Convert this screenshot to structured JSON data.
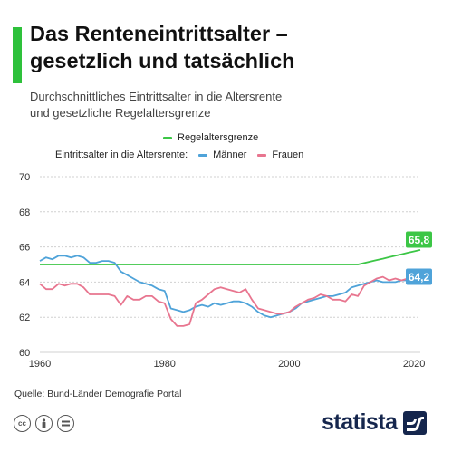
{
  "header": {
    "title_line1": "Das Renteneintrittsalter –",
    "title_line2": "gesetzlich und tatsächlich",
    "subtitle_line1": "Durchschnittliches Eintrittsalter in die Altersrente",
    "subtitle_line2": "und gesetzliche Regelaltersgrenze"
  },
  "legend": {
    "regel": "Regelaltersgrenze",
    "prefix": "Eintrittsalter in die Altersrente:",
    "maenner": "Männer",
    "frauen": "Frauen"
  },
  "footer": {
    "source": "Quelle: Bund-Länder Demografie Portal",
    "brand": "statista",
    "cc_icons": [
      "cc-icon",
      "by-icon",
      "nd-icon"
    ]
  },
  "colors": {
    "accent": "#2ec13b",
    "regel": "#3cc646",
    "maenner": "#4fa3d9",
    "frauen": "#e8758f",
    "grid": "#d0d0d0",
    "brand": "#15264d"
  },
  "chart_data": {
    "type": "line",
    "x_ticks": [
      1960,
      1980,
      2000,
      2020
    ],
    "y_ticks": [
      60,
      62,
      64,
      66,
      68,
      70
    ],
    "xlim": [
      1960,
      2021
    ],
    "ylim": [
      60,
      70
    ],
    "grid": "horizontal",
    "end_labels": {
      "regel": "65,8",
      "maenner": "64,2"
    },
    "series": [
      {
        "key": "regel",
        "name": "Regelaltersgrenze",
        "x": [
          1960,
          2011,
          2012,
          2013,
          2014,
          2015,
          2016,
          2017,
          2018,
          2019,
          2020,
          2021
        ],
        "y": [
          65.0,
          65.0,
          65.08,
          65.17,
          65.25,
          65.33,
          65.42,
          65.5,
          65.58,
          65.67,
          65.75,
          65.83
        ]
      },
      {
        "key": "maenner",
        "name": "Männer",
        "x": [
          1960,
          1961,
          1962,
          1963,
          1964,
          1965,
          1966,
          1967,
          1968,
          1969,
          1970,
          1971,
          1972,
          1973,
          1974,
          1975,
          1976,
          1977,
          1978,
          1979,
          1980,
          1981,
          1982,
          1983,
          1984,
          1985,
          1986,
          1987,
          1988,
          1989,
          1990,
          1991,
          1992,
          1993,
          1994,
          1995,
          1996,
          1997,
          1998,
          1999,
          2000,
          2001,
          2002,
          2003,
          2004,
          2005,
          2006,
          2007,
          2008,
          2009,
          2010,
          2011,
          2012,
          2013,
          2014,
          2015,
          2016,
          2017,
          2018,
          2019,
          2020
        ],
        "y": [
          65.2,
          65.4,
          65.3,
          65.5,
          65.5,
          65.4,
          65.5,
          65.4,
          65.1,
          65.1,
          65.2,
          65.2,
          65.1,
          64.6,
          64.4,
          64.2,
          64.0,
          63.9,
          63.8,
          63.6,
          63.5,
          62.5,
          62.4,
          62.3,
          62.4,
          62.6,
          62.7,
          62.6,
          62.8,
          62.7,
          62.8,
          62.9,
          62.9,
          62.8,
          62.6,
          62.3,
          62.1,
          62.0,
          62.1,
          62.2,
          62.3,
          62.5,
          62.8,
          62.9,
          63.0,
          63.1,
          63.2,
          63.2,
          63.3,
          63.4,
          63.7,
          63.8,
          63.9,
          64.0,
          64.1,
          64.0,
          64.0,
          64.0,
          64.1,
          64.1,
          64.2
        ]
      },
      {
        "key": "frauen",
        "name": "Frauen",
        "x": [
          1960,
          1961,
          1962,
          1963,
          1964,
          1965,
          1966,
          1967,
          1968,
          1969,
          1970,
          1971,
          1972,
          1973,
          1974,
          1975,
          1976,
          1977,
          1978,
          1979,
          1980,
          1981,
          1982,
          1983,
          1984,
          1985,
          1986,
          1987,
          1988,
          1989,
          1990,
          1991,
          1992,
          1993,
          1994,
          1995,
          1996,
          1997,
          1998,
          1999,
          2000,
          2001,
          2002,
          2003,
          2004,
          2005,
          2006,
          2007,
          2008,
          2009,
          2010,
          2011,
          2012,
          2013,
          2014,
          2015,
          2016,
          2017,
          2018,
          2019,
          2020
        ],
        "y": [
          63.9,
          63.6,
          63.6,
          63.9,
          63.8,
          63.9,
          63.9,
          63.7,
          63.3,
          63.3,
          63.3,
          63.3,
          63.2,
          62.7,
          63.2,
          63.0,
          63.0,
          63.2,
          63.2,
          62.9,
          62.8,
          61.9,
          61.5,
          61.5,
          61.6,
          62.8,
          63.0,
          63.3,
          63.6,
          63.7,
          63.6,
          63.5,
          63.4,
          63.6,
          63.0,
          62.5,
          62.4,
          62.3,
          62.2,
          62.2,
          62.3,
          62.6,
          62.8,
          63.0,
          63.1,
          63.3,
          63.2,
          63.0,
          63.0,
          62.9,
          63.3,
          63.2,
          63.8,
          64.0,
          64.2,
          64.3,
          64.1,
          64.2,
          64.1,
          64.2,
          64.2
        ]
      }
    ]
  }
}
